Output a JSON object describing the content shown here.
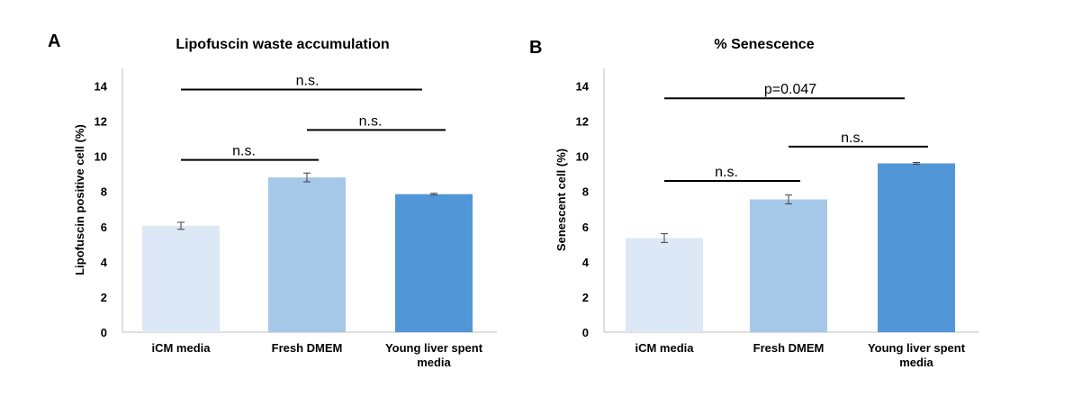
{
  "chart_data": [
    {
      "panel": "A",
      "type": "bar",
      "title": "Lipofuscin waste accumulation",
      "ylabel": "Lipofuscin positive cell (%)",
      "xlabel": "",
      "ylim": [
        0,
        15
      ],
      "yticks": [
        0,
        2,
        4,
        6,
        8,
        10,
        12,
        14
      ],
      "categories": [
        [
          "iCM media"
        ],
        [
          "Fresh DMEM"
        ],
        [
          "Young liver spent",
          "media"
        ]
      ],
      "values": [
        6.05,
        8.8,
        7.85
      ],
      "errors": [
        0.2,
        0.25,
        0.05
      ],
      "colors": [
        "#dce8f5",
        "#a6c8e9",
        "#5196d7"
      ],
      "significance": [
        {
          "from": 0,
          "to": 1,
          "y": 9.8,
          "label": "n.s."
        },
        {
          "from": 1,
          "to": 2,
          "y": 11.5,
          "label": "n.s."
        },
        {
          "from": 0,
          "to": 2,
          "y": 13.8,
          "label": "n.s."
        }
      ]
    },
    {
      "panel": "B",
      "type": "bar",
      "title": "% Senescence",
      "ylabel": "Senescent cell (%)",
      "xlabel": "",
      "ylim": [
        0,
        15
      ],
      "yticks": [
        0,
        2,
        4,
        6,
        8,
        10,
        12,
        14
      ],
      "categories": [
        [
          "iCM media"
        ],
        [
          "Fresh DMEM"
        ],
        [
          "Young liver spent",
          "media"
        ]
      ],
      "values": [
        5.35,
        7.55,
        9.6
      ],
      "errors": [
        0.25,
        0.25,
        0.05
      ],
      "colors": [
        "#dce8f5",
        "#a6c8e9",
        "#5196d7"
      ],
      "significance": [
        {
          "from": 0,
          "to": 1,
          "y": 8.6,
          "label": "n.s."
        },
        {
          "from": 1,
          "to": 2,
          "y": 10.55,
          "label": "n.s."
        },
        {
          "from": 0,
          "to": 2,
          "y": 13.3,
          "label": "p=0.047"
        }
      ]
    }
  ]
}
